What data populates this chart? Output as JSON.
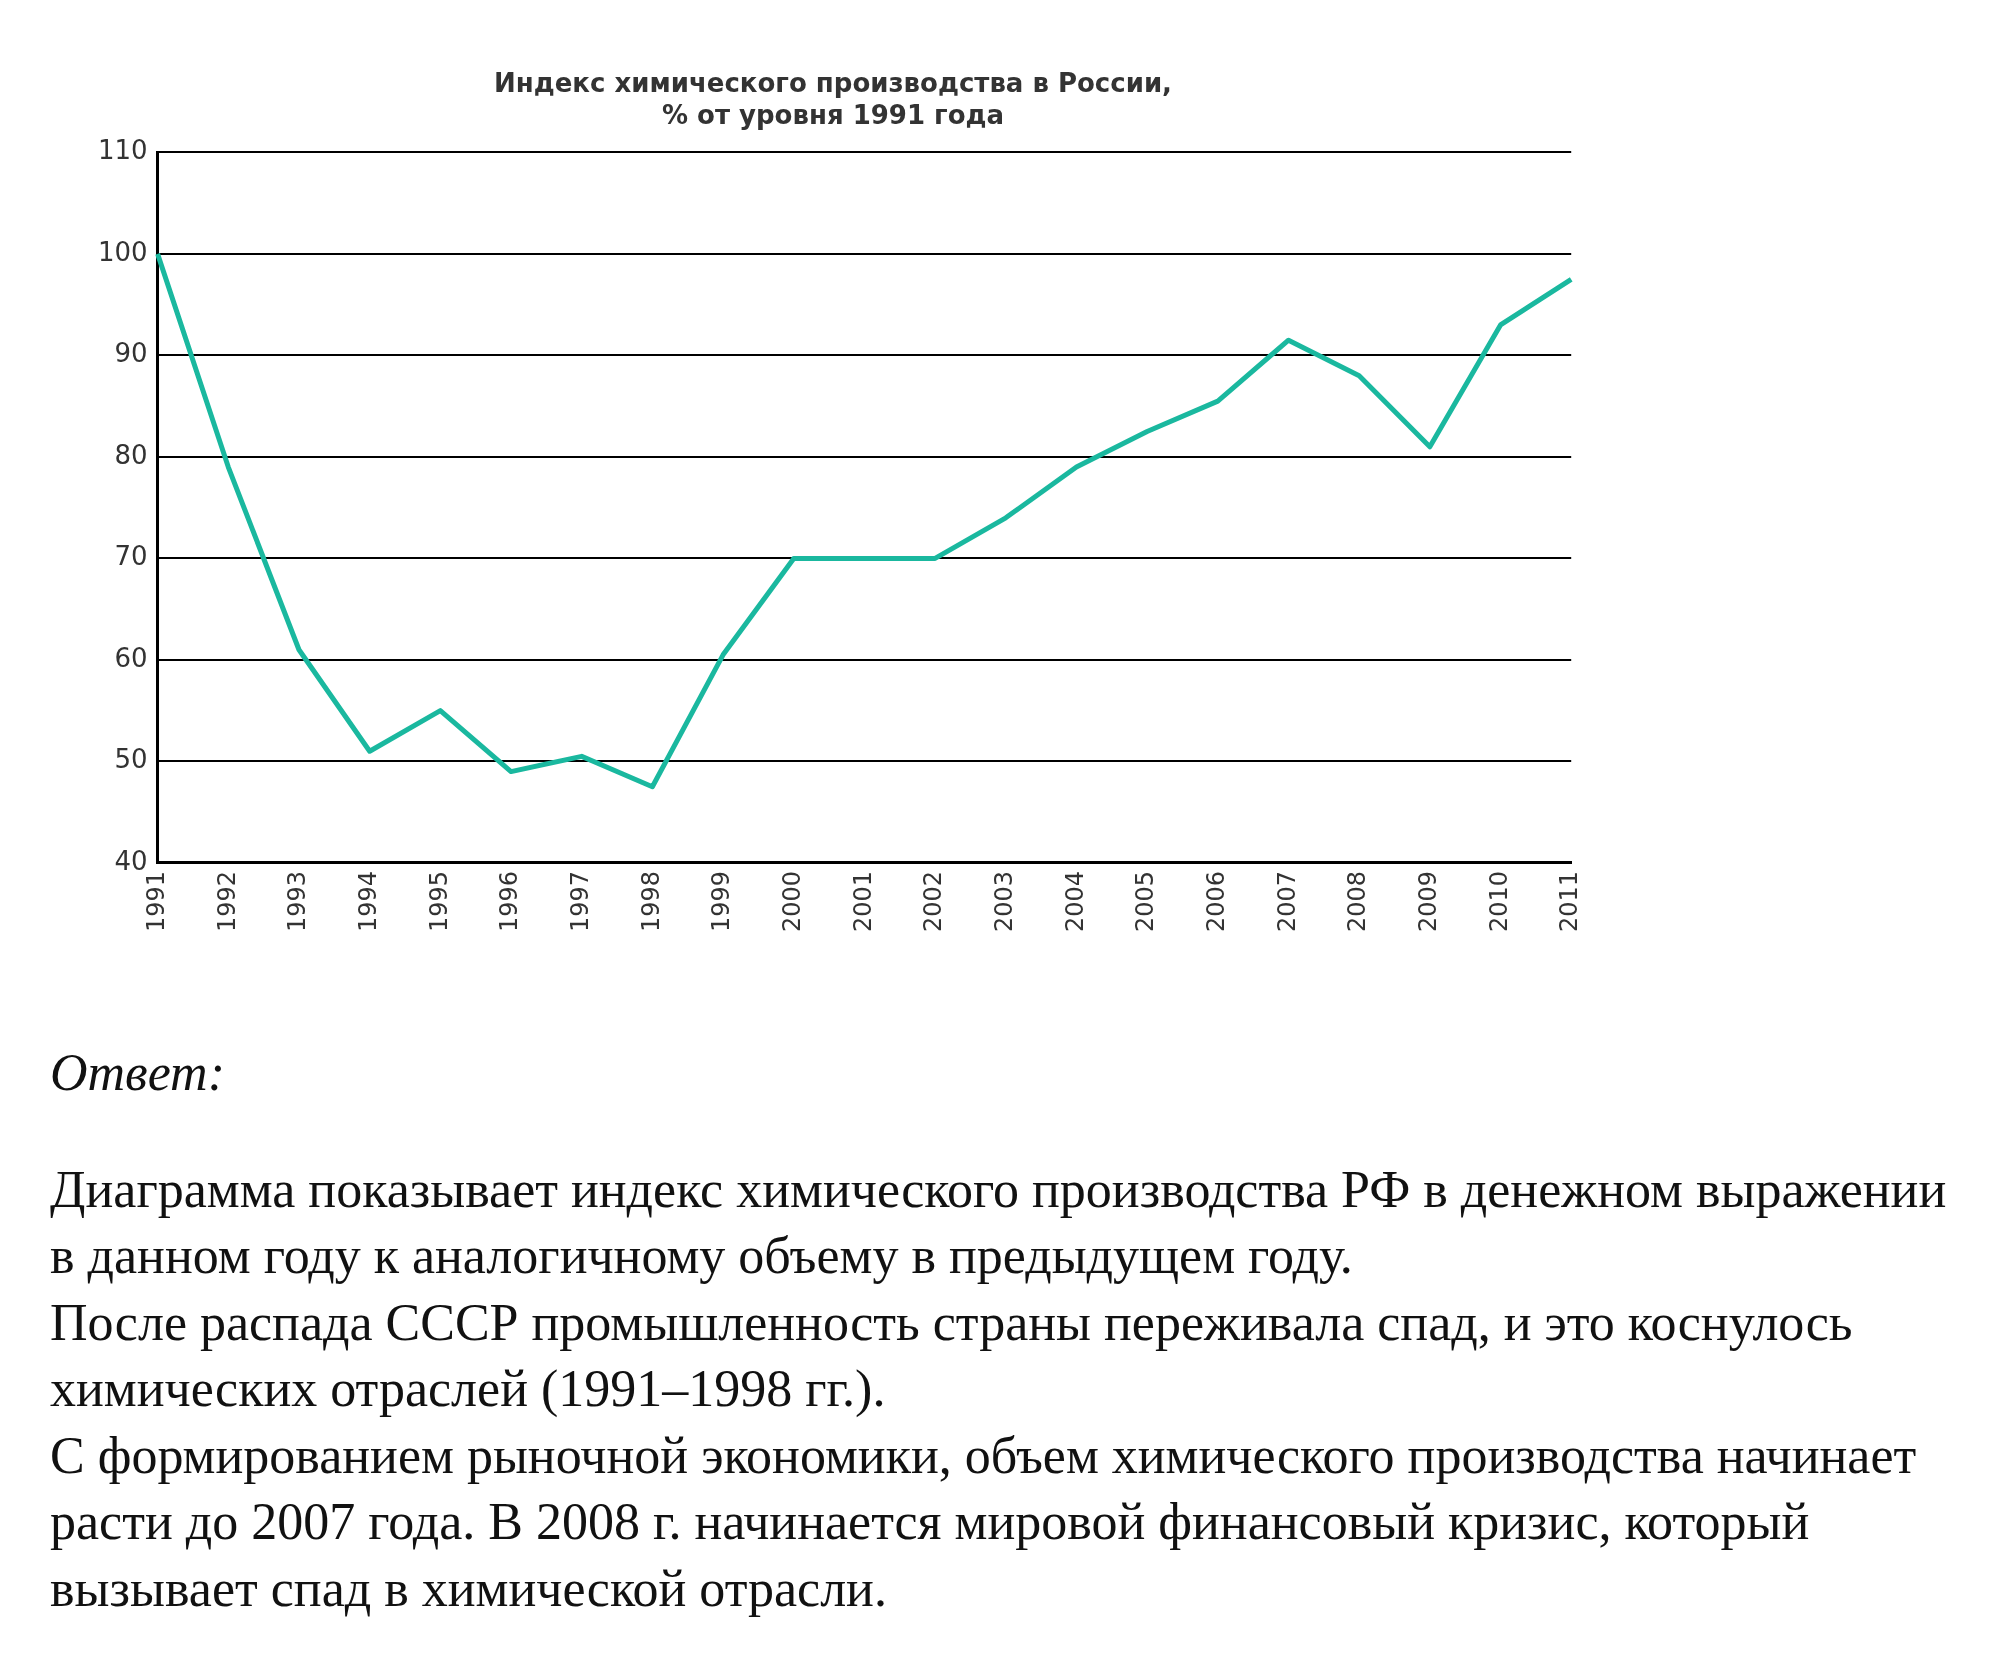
{
  "chart_data": {
    "type": "line",
    "title": "Индекс химического производства в России,\n% от уровня 1991 года",
    "categories": [
      "1991",
      "1992",
      "1993",
      "1994",
      "1995",
      "1996",
      "1997",
      "1998",
      "1999",
      "2000",
      "2001",
      "2002",
      "2003",
      "2004",
      "2005",
      "2006",
      "2007",
      "2008",
      "2009",
      "2010",
      "2011"
    ],
    "series": [
      {
        "color": "#1ab89f",
        "values": [
          100,
          79,
          61,
          51,
          55,
          49,
          50.5,
          47.5,
          60.5,
          70,
          70,
          70,
          74,
          79,
          82.5,
          85.5,
          91.5,
          88,
          81,
          93,
          97.5
        ]
      }
    ],
    "ylim": [
      40,
      110
    ],
    "yticks": [
      40,
      50,
      60,
      70,
      80,
      90,
      100,
      110
    ],
    "grid": "y",
    "legend": false,
    "marker": "none",
    "line_style": "solid",
    "annotations": [
      "Ответ:",
      "Диаграмма показывает индекс химического производства РФ в денежном выражении в данном году к аналогичному объему в предыдущем году.",
      "После распада СССР промышленность страны переживала спад, и это коснулось химических отраслей (1991–1998 гг.).",
      "С формированием рыночной экономики, объем химического производства начинает расти до 2007 года. В 2008 г. начинается мировой финансовый кризис, который вызывает спад в химической отрасли."
    ]
  }
}
